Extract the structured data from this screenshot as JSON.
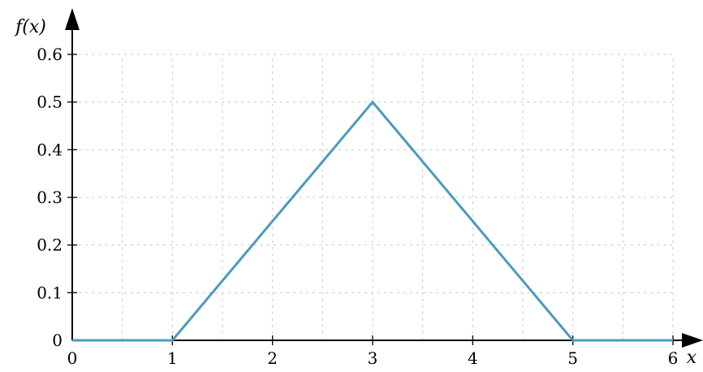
{
  "chart_data": {
    "type": "line",
    "title": "",
    "xlabel": "x",
    "ylabel": "f(x)",
    "xlim": [
      0,
      6
    ],
    "ylim": [
      0,
      0.6
    ],
    "x_ticks": [
      0,
      1,
      2,
      3,
      4,
      5,
      6
    ],
    "x_tick_labels": [
      "0",
      "1",
      "2",
      "3",
      "4",
      "5",
      "6"
    ],
    "y_ticks": [
      0,
      0.1,
      0.2,
      0.3,
      0.4,
      0.5,
      0.6
    ],
    "y_tick_labels": [
      "0",
      "0.1",
      "0.2",
      "0.3",
      "0.4",
      "0.5",
      "0.6"
    ],
    "grid": true,
    "grid_x_step": 0.5,
    "grid_y_step": 0.1,
    "series": [
      {
        "color": "#4a9bbd",
        "points": [
          {
            "x": 0,
            "y": 0
          },
          {
            "x": 1,
            "y": 0
          },
          {
            "x": 3,
            "y": 0.5
          },
          {
            "x": 5,
            "y": 0
          },
          {
            "x": 6,
            "y": 0
          }
        ]
      }
    ]
  }
}
